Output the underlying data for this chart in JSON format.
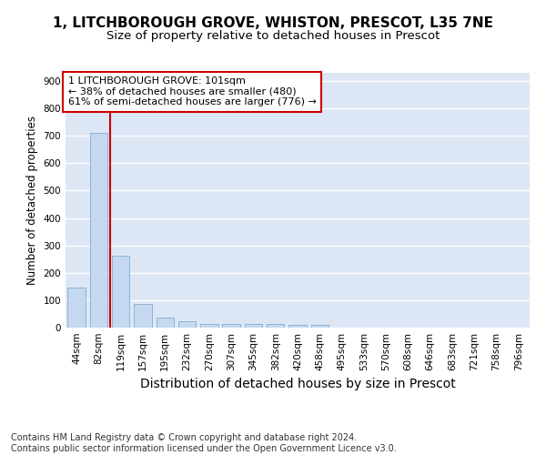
{
  "title1": "1, LITCHBOROUGH GROVE, WHISTON, PRESCOT, L35 7NE",
  "title2": "Size of property relative to detached houses in Prescot",
  "xlabel": "Distribution of detached houses by size in Prescot",
  "ylabel": "Number of detached properties",
  "categories": [
    "44sqm",
    "82sqm",
    "119sqm",
    "157sqm",
    "195sqm",
    "232sqm",
    "270sqm",
    "307sqm",
    "345sqm",
    "382sqm",
    "420sqm",
    "458sqm",
    "495sqm",
    "533sqm",
    "570sqm",
    "608sqm",
    "646sqm",
    "683sqm",
    "721sqm",
    "758sqm",
    "796sqm"
  ],
  "values": [
    147,
    711,
    263,
    85,
    36,
    22,
    13,
    12,
    12,
    12,
    10,
    10,
    0,
    0,
    0,
    0,
    0,
    0,
    0,
    0,
    0
  ],
  "bar_color": "#c5d8f0",
  "bar_edge_color": "#8ab4d8",
  "vline_x": 1.5,
  "vline_color": "#cc0000",
  "annotation_line1": "1 LITCHBOROUGH GROVE: 101sqm",
  "annotation_line2": "← 38% of detached houses are smaller (480)",
  "annotation_line3": "61% of semi-detached houses are larger (776) →",
  "annotation_box_facecolor": "#ffffff",
  "annotation_box_edgecolor": "#cc0000",
  "ylim": [
    0,
    930
  ],
  "yticks": [
    0,
    100,
    200,
    300,
    400,
    500,
    600,
    700,
    800,
    900
  ],
  "background_color": "#dde6f5",
  "grid_color": "#ffffff",
  "footer_text": "Contains HM Land Registry data © Crown copyright and database right 2024.\nContains public sector information licensed under the Open Government Licence v3.0.",
  "title1_fontsize": 11,
  "title2_fontsize": 9.5,
  "xlabel_fontsize": 10,
  "ylabel_fontsize": 8.5,
  "tick_fontsize": 7.5,
  "ann_fontsize": 8,
  "footer_fontsize": 7
}
